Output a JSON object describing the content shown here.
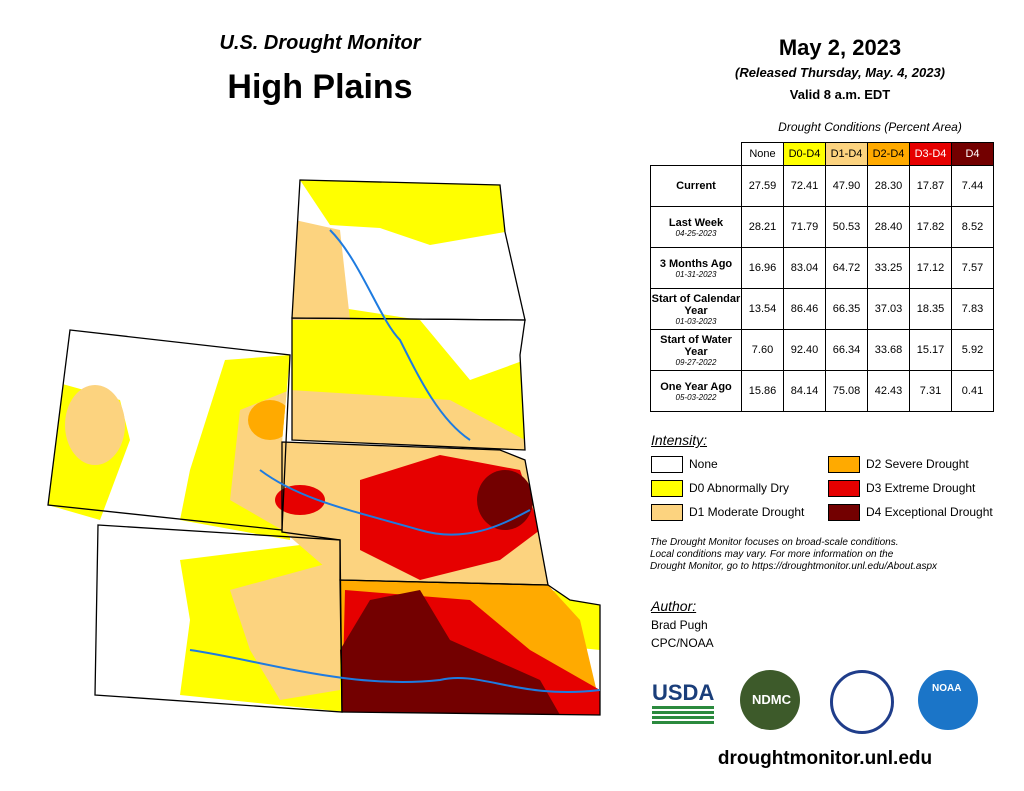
{
  "header": {
    "subtitle": "U.S. Drought Monitor",
    "title": "High Plains"
  },
  "date": {
    "main": "May 2, 2023",
    "released": "(Released Thursday, May. 4, 2023)",
    "valid": "Valid 8 a.m. EDT"
  },
  "table": {
    "caption": "Drought Conditions (Percent Area)",
    "columns": [
      "None",
      "D0-D4",
      "D1-D4",
      "D2-D4",
      "D3-D4",
      "D4"
    ],
    "rows": [
      {
        "label": "Current",
        "values": [
          "27.59",
          "72.41",
          "47.90",
          "28.30",
          "17.87",
          "7.44"
        ]
      },
      {
        "label": "Last Week",
        "date": "04-25-2023",
        "values": [
          "28.21",
          "71.79",
          "50.53",
          "28.40",
          "17.82",
          "8.52"
        ]
      },
      {
        "label": "3 Months Ago",
        "date": "01-31-2023",
        "values": [
          "16.96",
          "83.04",
          "64.72",
          "33.25",
          "17.12",
          "7.57"
        ]
      },
      {
        "label": "Start of Calendar Year",
        "date": "01-03-2023",
        "values": [
          "13.54",
          "86.46",
          "66.35",
          "37.03",
          "18.35",
          "7.83"
        ]
      },
      {
        "label": "Start of Water Year",
        "date": "09-27-2022",
        "values": [
          "7.60",
          "92.40",
          "66.34",
          "33.68",
          "15.17",
          "5.92"
        ]
      },
      {
        "label": "One Year Ago",
        "date": "05-03-2022",
        "values": [
          "15.86",
          "84.14",
          "75.08",
          "42.43",
          "7.31",
          "0.41"
        ]
      }
    ]
  },
  "legend": {
    "title": "Intensity:",
    "items": [
      "None",
      "D0 Abnormally Dry",
      "D1 Moderate Drought",
      "D2 Severe Drought",
      "D3 Extreme Drought",
      "D4 Exceptional Drought"
    ]
  },
  "note": [
    "The Drought Monitor focuses on broad-scale conditions.",
    "Local conditions may vary. For more information on the",
    "Drought Monitor, go to https://droughtmonitor.unl.edu/About.aspx"
  ],
  "author": {
    "title": "Author:",
    "names": [
      "Brad Pugh",
      "CPC/NOAA"
    ]
  },
  "logos": [
    "USDA",
    "NDMC",
    "NOAA"
  ],
  "url": "droughtmonitor.unl.edu"
}
